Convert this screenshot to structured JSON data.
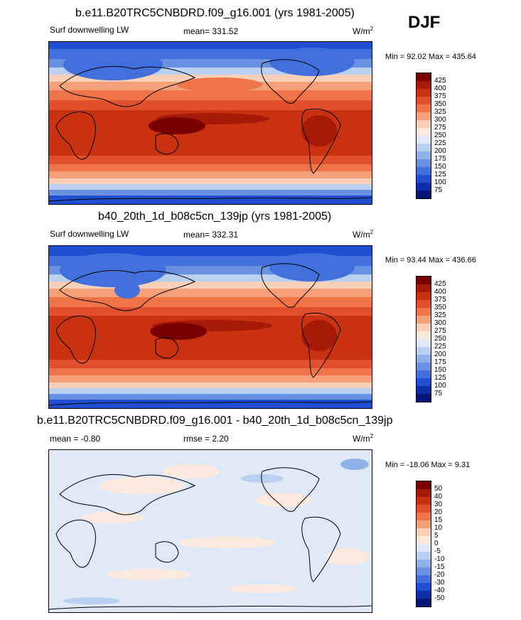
{
  "season": "DJF",
  "colors": {
    "p425": "#7a0000",
    "p400": "#a81a08",
    "p375": "#c9320f",
    "p350": "#e0502a",
    "p325": "#ef7447",
    "p300": "#f6a07a",
    "p275": "#fad1b8",
    "p250": "#fbeadd",
    "p225": "#dfe9f7",
    "p200": "#b9d0f0",
    "p175": "#90b2ea",
    "p150": "#6891e3",
    "p125": "#416fdb",
    "p100": "#1f4fd0",
    "p75": "#0c2fa8",
    "p50": "#031575"
  },
  "panels": [
    {
      "title": "b.e11.B20TRC5CNBDRD.f09_g16.001 (yrs 1981-2005)",
      "left_label": "Surf downwelling LW",
      "center_label": "mean= 331.52",
      "units": "W/m",
      "units_sup": "2",
      "minmax": "Min =  92.02 Max = 435.64",
      "colorbar": [
        "425",
        "400",
        "375",
        "350",
        "325",
        "300",
        "275",
        "250",
        "225",
        "200",
        "175",
        "150",
        "125",
        "100",
        "75"
      ]
    },
    {
      "title": "b40_20th_1d_b08c5cn_139jp (yrs 1981-2005)",
      "left_label": "Surf downwelling LW",
      "center_label": "mean= 332.31",
      "units": "W/m",
      "units_sup": "2",
      "minmax": "Min =  93.44 Max = 436.66",
      "colorbar": [
        "425",
        "400",
        "375",
        "350",
        "325",
        "300",
        "275",
        "250",
        "225",
        "200",
        "175",
        "150",
        "125",
        "100",
        "75"
      ]
    },
    {
      "title": "b.e11.B20TRC5CNBDRD.f09_g16.001 - b40_20th_1d_b08c5cn_139jp",
      "left_label": "mean =  -0.80",
      "center_label": "rmse =   2.20",
      "units": "W/m",
      "units_sup": "2",
      "minmax": "Min = -18.06 Max =   9.31",
      "colorbar": [
        "50",
        "40",
        "30",
        "20",
        "15",
        "10",
        "5",
        "0",
        "-5",
        "-10",
        "-15",
        "-20",
        "-30",
        "-40",
        "-50"
      ]
    }
  ],
  "chart_data": [
    {
      "type": "heatmap",
      "title": "b.e11.B20TRC5CNBDRD.f09_g16.001 (yrs 1981-2005)",
      "variable": "Surf downwelling LW",
      "units": "W/m2",
      "mean": 331.52,
      "min": 92.02,
      "max": 435.64,
      "levels": [
        75,
        100,
        125,
        150,
        175,
        200,
        225,
        250,
        275,
        300,
        325,
        350,
        375,
        400,
        425
      ]
    },
    {
      "type": "heatmap",
      "title": "b40_20th_1d_b08c5cn_139jp (yrs 1981-2005)",
      "variable": "Surf downwelling LW",
      "units": "W/m2",
      "mean": 332.31,
      "min": 93.44,
      "max": 436.66,
      "levels": [
        75,
        100,
        125,
        150,
        175,
        200,
        225,
        250,
        275,
        300,
        325,
        350,
        375,
        400,
        425
      ]
    },
    {
      "type": "heatmap",
      "title": "b.e11.B20TRC5CNBDRD.f09_g16.001 - b40_20th_1d_b08c5cn_139jp",
      "units": "W/m2",
      "mean": -0.8,
      "rmse": 2.2,
      "min": -18.06,
      "max": 9.31,
      "levels": [
        -50,
        -40,
        -30,
        -20,
        -15,
        -10,
        -5,
        0,
        5,
        10,
        15,
        20,
        30,
        40,
        50
      ]
    }
  ]
}
